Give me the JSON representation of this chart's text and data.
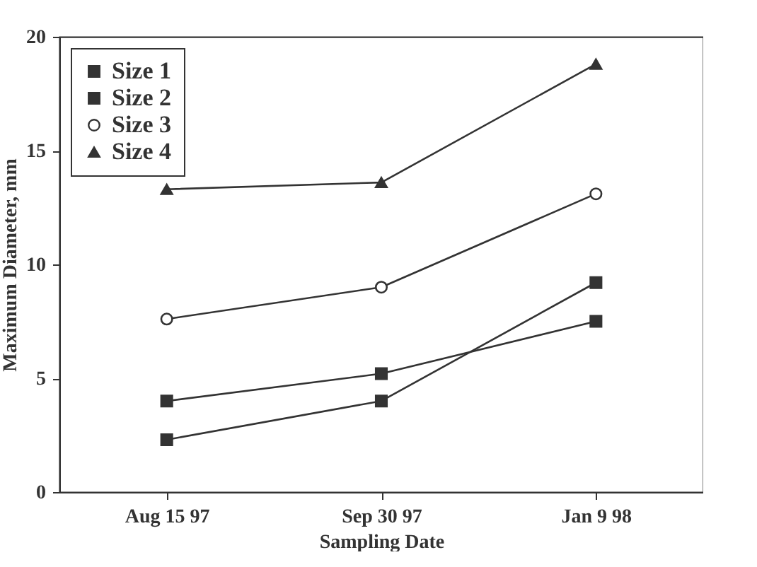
{
  "chart_data": {
    "type": "line",
    "xlabel": "Sampling Date",
    "ylabel": "Maximum Diameter, mm",
    "categories": [
      "Aug 15 97",
      "Sep 30 97",
      "Jan 9 98"
    ],
    "series": [
      {
        "name": "Size 1",
        "color": "#333333",
        "marker": "square",
        "values": [
          2.3,
          4.0,
          9.2
        ]
      },
      {
        "name": "Size 2",
        "color": "#333333",
        "marker": "square",
        "values": [
          4.0,
          5.2,
          7.5
        ]
      },
      {
        "name": "Size 3",
        "color": "#333333",
        "marker": "circle",
        "values": [
          7.6,
          9.0,
          13.1
        ]
      },
      {
        "name": "Size 4",
        "color": "#333333",
        "marker": "triangle",
        "values": [
          13.3,
          13.6,
          18.8
        ]
      }
    ],
    "ylim": [
      0,
      20
    ],
    "yticks": [
      0,
      5,
      10,
      15,
      20
    ],
    "legend": "top left",
    "grid": false,
    "line_style": "solid"
  }
}
